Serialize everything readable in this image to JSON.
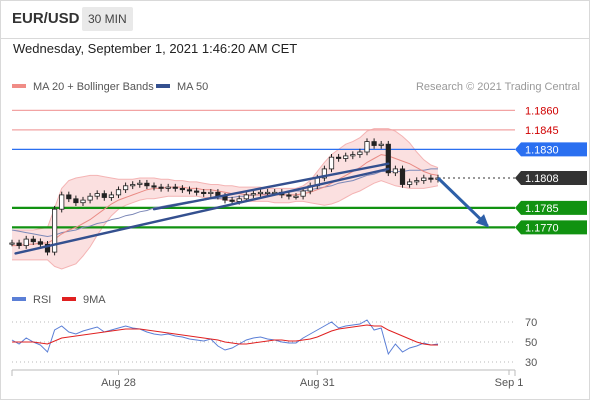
{
  "header": {
    "pair": "EUR/USD",
    "timeframe": "30 MIN"
  },
  "datetime": "Wednesday, September 1, 2021 1:46:20 AM CET",
  "copyright": "Research © 2021 Trading Central",
  "chart_data": {
    "type": "line",
    "price_panel": {
      "ylim": [
        1.1728,
        1.1868
      ],
      "legend": [
        {
          "label": "MA 20 + Bollinger Bands",
          "color": "#f08c86"
        },
        {
          "label": "MA 50",
          "color": "#34508f"
        }
      ],
      "levels": [
        {
          "label": "1.1860",
          "value": 1.186,
          "kind": "resistance",
          "color": "#d00000"
        },
        {
          "label": "1.1845",
          "value": 1.1845,
          "kind": "resistance",
          "color": "#d00000"
        },
        {
          "label": "1.1830",
          "value": 1.183,
          "kind": "pivot",
          "color": "#2a6ff0"
        },
        {
          "label": "1.1808",
          "value": 1.1808,
          "kind": "last",
          "color": "#333333"
        },
        {
          "label": "1.1785",
          "value": 1.1785,
          "kind": "support",
          "color": "#119211"
        },
        {
          "label": "1.1770",
          "value": 1.177,
          "kind": "support",
          "color": "#119211"
        }
      ],
      "trendlines": [
        {
          "from": [
            0.5,
            1.175
          ],
          "to": [
            53,
            1.1815
          ],
          "color": "#34508f"
        },
        {
          "from": [
            20,
            1.1784
          ],
          "to": [
            53,
            1.1819
          ],
          "color": "#34508f"
        }
      ],
      "arrow": {
        "from": [
          60,
          1.1808
        ],
        "to": [
          67,
          1.1771
        ],
        "color": "#2d5fa8"
      },
      "close": [
        1.1758,
        1.1756,
        1.1761,
        1.1759,
        1.1757,
        1.1751,
        1.1784,
        1.1795,
        1.1792,
        1.1789,
        1.1791,
        1.1794,
        1.1796,
        1.1793,
        1.1795,
        1.1799,
        1.1802,
        1.1803,
        1.1804,
        1.1802,
        1.1801,
        1.18,
        1.1801,
        1.18,
        1.1799,
        1.1798,
        1.1797,
        1.1796,
        1.1797,
        1.1794,
        1.1791,
        1.179,
        1.1792,
        1.1795,
        1.1796,
        1.1797,
        1.1797,
        1.1797,
        1.1795,
        1.1794,
        1.1794,
        1.1798,
        1.1802,
        1.1808,
        1.1815,
        1.1824,
        1.1823,
        1.1825,
        1.1826,
        1.1828,
        1.1836,
        1.1833,
        1.1834,
        1.1812,
        1.1815,
        1.1803,
        1.1805,
        1.1806,
        1.1808,
        1.1807,
        1.1808
      ],
      "ma20": [
        1.1756,
        1.1756,
        1.1757,
        1.1757,
        1.1758,
        1.1758,
        1.1761,
        1.1765,
        1.1768,
        1.177,
        1.1773,
        1.1776,
        1.178,
        1.1784,
        1.1788,
        1.1791,
        1.1793,
        1.1795,
        1.1797,
        1.1799,
        1.18,
        1.18,
        1.1801,
        1.1801,
        1.1801,
        1.18,
        1.18,
        1.1799,
        1.1799,
        1.1798,
        1.1797,
        1.1796,
        1.1796,
        1.1795,
        1.1795,
        1.1795,
        1.1795,
        1.1795,
        1.1795,
        1.1795,
        1.1795,
        1.1796,
        1.1797,
        1.1799,
        1.1801,
        1.1804,
        1.1807,
        1.181,
        1.1813,
        1.1816,
        1.182,
        1.1823,
        1.1826,
        1.1825,
        1.1823,
        1.1821,
        1.1819,
        1.1816,
        1.1813,
        1.1811,
        1.181
      ],
      "ma50": [
        1.1768,
        1.1767,
        1.1766,
        1.1765,
        1.1764,
        1.1763,
        1.1764,
        1.1766,
        1.1767,
        1.1768,
        1.177,
        1.1771,
        1.1773,
        1.1774,
        1.1776,
        1.1777,
        1.1779,
        1.178,
        1.1782,
        1.1783,
        1.1785,
        1.1786,
        1.1787,
        1.1788,
        1.1789,
        1.179,
        1.179,
        1.1791,
        1.1792,
        1.1792,
        1.1793,
        1.1793,
        1.1794,
        1.1794,
        1.1795,
        1.1795,
        1.1796,
        1.1796,
        1.1797,
        1.1797,
        1.1798,
        1.1798,
        1.1799,
        1.18,
        1.1801,
        1.1802,
        1.1804,
        1.1805,
        1.1806,
        1.1808,
        1.181,
        1.1811,
        1.1813,
        1.1813,
        1.1813,
        1.1813,
        1.1814,
        1.1814,
        1.1814,
        1.1815,
        1.1815
      ],
      "bb_upper": [
        1.1768,
        1.1768,
        1.1768,
        1.1768,
        1.1769,
        1.177,
        1.1785,
        1.18,
        1.1806,
        1.1808,
        1.1809,
        1.181,
        1.181,
        1.1809,
        1.1808,
        1.1807,
        1.1807,
        1.1807,
        1.1808,
        1.1808,
        1.1808,
        1.1807,
        1.1807,
        1.1806,
        1.1806,
        1.1805,
        1.1805,
        1.1804,
        1.1803,
        1.1803,
        1.1802,
        1.1802,
        1.1801,
        1.1801,
        1.1801,
        1.1801,
        1.18,
        1.18,
        1.18,
        1.18,
        1.18,
        1.1802,
        1.1806,
        1.1813,
        1.182,
        1.1826,
        1.183,
        1.1834,
        1.1836,
        1.1839,
        1.1844,
        1.1846,
        1.1846,
        1.1846,
        1.1844,
        1.184,
        1.1835,
        1.1828,
        1.1822,
        1.1818,
        1.1816
      ],
      "bb_lower": [
        1.1745,
        1.1745,
        1.1745,
        1.1745,
        1.1745,
        1.1745,
        1.174,
        1.1738,
        1.174,
        1.1742,
        1.1748,
        1.1755,
        1.1764,
        1.1772,
        1.1779,
        1.1784,
        1.1787,
        1.1789,
        1.1791,
        1.1792,
        1.1792,
        1.1793,
        1.1794,
        1.1794,
        1.1794,
        1.1794,
        1.1794,
        1.1793,
        1.1793,
        1.1792,
        1.1791,
        1.179,
        1.179,
        1.179,
        1.179,
        1.179,
        1.179,
        1.1789,
        1.1789,
        1.1789,
        1.179,
        1.179,
        1.1789,
        1.1788,
        1.1787,
        1.1788,
        1.179,
        1.1793,
        1.1796,
        1.1798,
        1.1801,
        1.1804,
        1.1806,
        1.1804,
        1.1802,
        1.1801,
        1.18,
        1.18,
        1.18,
        1.1801,
        1.1802
      ]
    },
    "rsi_panel": {
      "legend": [
        {
          "label": "RSI",
          "color": "#5b7fd6"
        },
        {
          "label": "9MA",
          "color": "#e02020"
        }
      ],
      "ylim": [
        20,
        80
      ],
      "ticks": [
        {
          "label": "70",
          "value": 70
        },
        {
          "label": "50",
          "value": 50
        },
        {
          "label": "30",
          "value": 30
        }
      ],
      "rsi": [
        52,
        48,
        54,
        50,
        47,
        40,
        62,
        66,
        60,
        58,
        61,
        63,
        65,
        60,
        62,
        64,
        66,
        64,
        63,
        60,
        58,
        57,
        58,
        56,
        55,
        53,
        52,
        51,
        53,
        46,
        42,
        44,
        48,
        52,
        54,
        55,
        53,
        52,
        50,
        49,
        49,
        54,
        58,
        62,
        66,
        70,
        64,
        66,
        67,
        68,
        72,
        62,
        64,
        38,
        48,
        40,
        44,
        46,
        49,
        47,
        48
      ],
      "ma9": [
        50,
        50,
        50,
        50,
        49,
        48,
        51,
        54,
        55,
        56,
        57,
        58,
        59,
        60,
        61,
        62,
        63,
        63,
        63,
        62,
        61,
        60,
        59,
        58,
        57,
        56,
        55,
        54,
        53,
        52,
        50,
        49,
        48,
        48,
        49,
        50,
        51,
        52,
        52,
        51,
        51,
        52,
        53,
        55,
        58,
        61,
        63,
        64,
        65,
        66,
        67,
        66,
        66,
        62,
        59,
        56,
        53,
        50,
        48,
        47,
        47
      ]
    },
    "x_ticks": [
      {
        "label": "Aug 28",
        "index": 15
      },
      {
        "label": "Aug 31",
        "index": 43
      },
      {
        "label": "Sep 1",
        "index": 70
      }
    ]
  }
}
